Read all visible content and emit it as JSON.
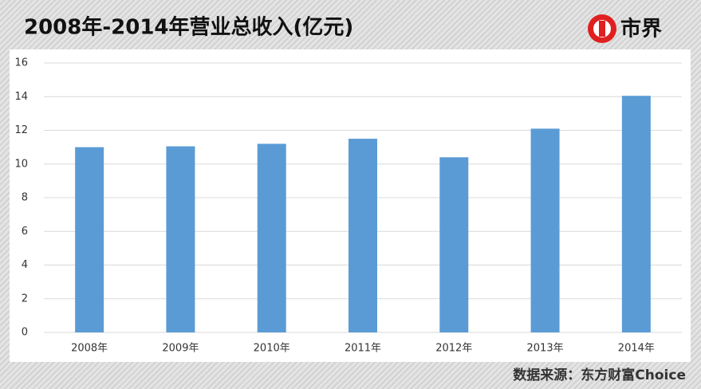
{
  "chart_data": {
    "type": "bar",
    "title": "2008年-2014年营业总收入(亿元)",
    "logo": "市界",
    "source": "数据来源：东方财富Choice",
    "categories": [
      "2008年",
      "2009年",
      "2010年",
      "2011年",
      "2012年",
      "2013年",
      "2014年"
    ],
    "values": [
      11.0,
      11.05,
      11.2,
      11.5,
      10.4,
      12.1,
      14.05
    ],
    "color": "#5b9bd5",
    "ylim": [
      0,
      16
    ],
    "yticks": [
      0,
      2,
      4,
      6,
      8,
      10,
      12,
      14,
      16
    ],
    "grid": true
  }
}
